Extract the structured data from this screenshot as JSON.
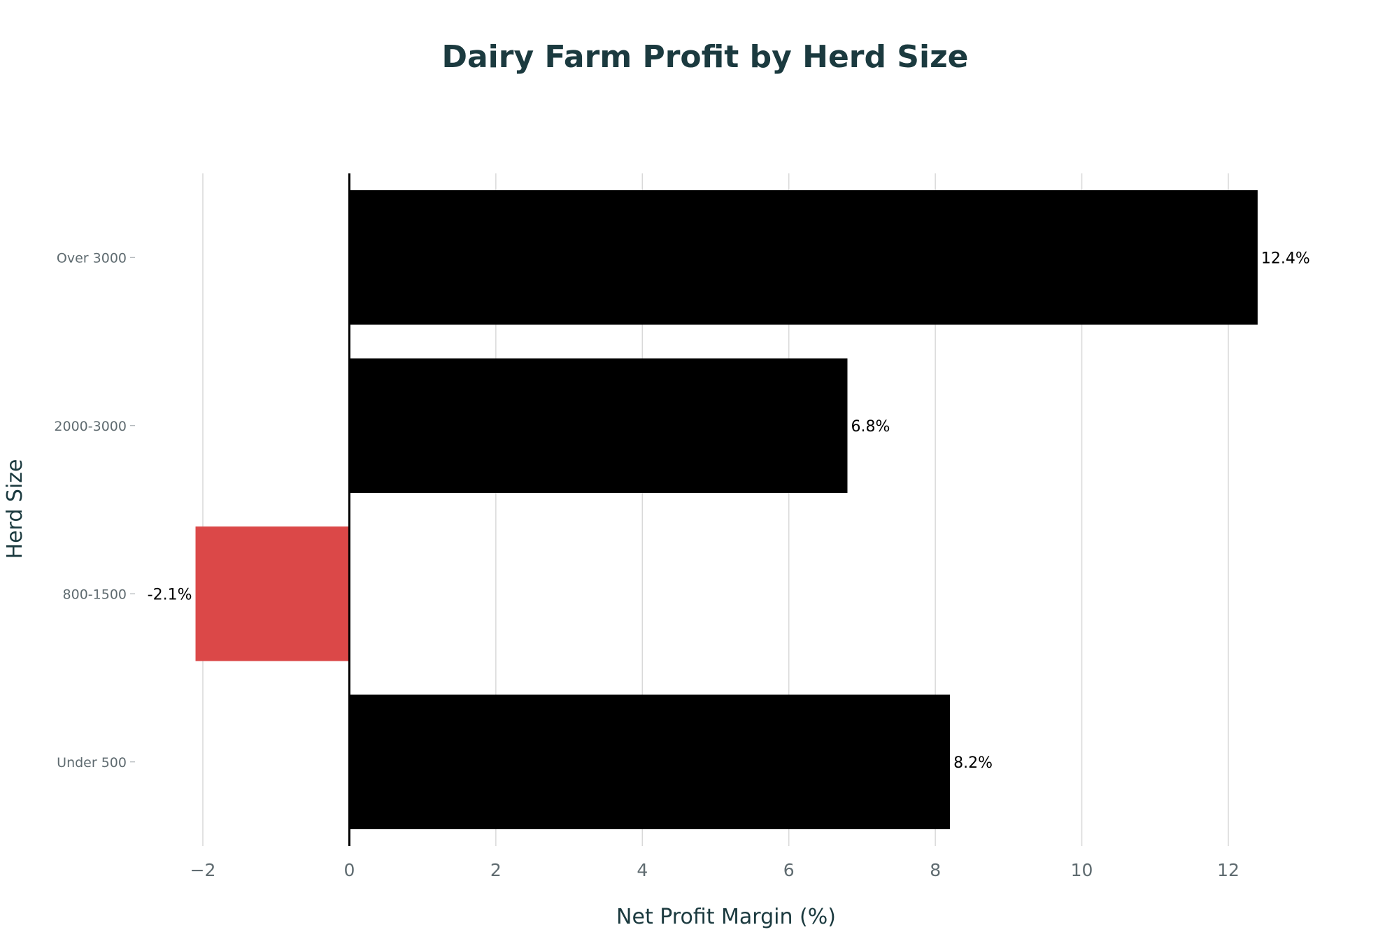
{
  "chart_data": {
    "type": "bar",
    "orientation": "horizontal",
    "title": "Dairy Farm Profit by Herd Size",
    "xlabel": "Net Profit Margin (%)",
    "ylabel": "Herd Size",
    "categories": [
      "Under 500",
      "800-1500",
      "2000-3000",
      "Over 3000"
    ],
    "values": [
      8.2,
      -2.1,
      6.8,
      12.4
    ],
    "data_labels": [
      "8.2%",
      "-2.1%",
      "6.8%",
      "12.4%"
    ],
    "xlim": [
      -2,
      12
    ],
    "xticks": [
      -2,
      0,
      2,
      4,
      6,
      8,
      10,
      12
    ],
    "xtick_labels": [
      "−2",
      "0",
      "2",
      "4",
      "6",
      "8",
      "10",
      "12"
    ],
    "grid": true,
    "colors": {
      "positive": "#000000",
      "negative": "#db4848"
    }
  }
}
